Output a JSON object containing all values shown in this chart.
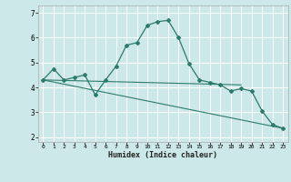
{
  "xlabel": "Humidex (Indice chaleur)",
  "x": [
    0,
    1,
    2,
    3,
    4,
    5,
    6,
    7,
    8,
    9,
    10,
    11,
    12,
    13,
    14,
    15,
    16,
    17,
    18,
    19,
    20,
    21,
    22,
    23
  ],
  "line1": [
    4.3,
    4.75,
    4.3,
    4.4,
    4.5,
    3.7,
    4.3,
    4.85,
    5.7,
    5.8,
    6.5,
    6.65,
    6.7,
    6.0,
    4.95,
    4.3,
    4.2,
    4.1,
    3.85,
    3.95,
    3.85,
    3.05,
    2.5,
    2.35
  ],
  "line3_x": [
    0,
    23
  ],
  "line3_y": [
    4.3,
    2.35
  ],
  "line4_x": [
    0,
    19
  ],
  "line4_y": [
    4.3,
    4.1
  ],
  "color": "#2d7b6b",
  "bg_color": "#cde8e8",
  "grid_color": "#ffffff",
  "ylim": [
    1.8,
    7.3
  ],
  "xlim": [
    -0.5,
    23.5
  ],
  "yticks": [
    2,
    3,
    4,
    5,
    6,
    7
  ],
  "xticks": [
    0,
    1,
    2,
    3,
    4,
    5,
    6,
    7,
    8,
    9,
    10,
    11,
    12,
    13,
    14,
    15,
    16,
    17,
    18,
    19,
    20,
    21,
    22,
    23
  ]
}
